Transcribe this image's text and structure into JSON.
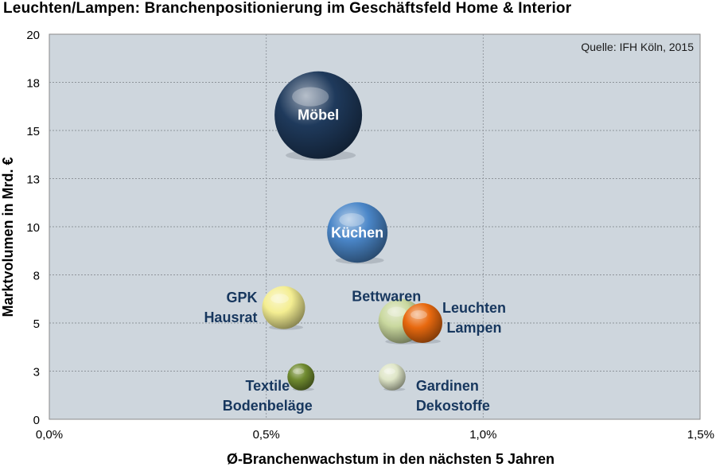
{
  "chart_data": {
    "type": "bubble",
    "title": "Leuchten/Lampen: Branchenpositionierung im Geschäftsfeld Home & Interior",
    "source_note": "Quelle: IFH Köln, 2015",
    "xlabel": "Ø-Branchenwachstum in den nächsten 5 Jahren",
    "ylabel": "Marktvolumen in Mrd. €",
    "xlim": [
      0.0,
      1.5
    ],
    "ylim": [
      0,
      20
    ],
    "x_ticks": [
      {
        "value": 0.0,
        "label": "0,0%"
      },
      {
        "value": 0.5,
        "label": "0,5%"
      },
      {
        "value": 1.0,
        "label": "1,0%"
      },
      {
        "value": 1.5,
        "label": "1,5%"
      }
    ],
    "y_ticks": [
      {
        "value": 0,
        "label": "0"
      },
      {
        "value": 2.5,
        "label": "3"
      },
      {
        "value": 5,
        "label": "5"
      },
      {
        "value": 7.5,
        "label": "8"
      },
      {
        "value": 10,
        "label": "10"
      },
      {
        "value": 12.5,
        "label": "13"
      },
      {
        "value": 15,
        "label": "15"
      },
      {
        "value": 17.5,
        "label": "18"
      },
      {
        "value": 20,
        "label": "20"
      }
    ],
    "grid": true,
    "plot_background": "#ced6dd",
    "series": [
      {
        "label": "Möbel",
        "x": 0.62,
        "y": 15.8,
        "size": 55,
        "color": "#1f3a5c",
        "label_color": "#ffffff",
        "label_pos": "inside"
      },
      {
        "label": "Küchen",
        "x": 0.71,
        "y": 9.7,
        "size": 38,
        "color": "#4a86c8",
        "label_color": "#ffffff",
        "label_pos": "inside"
      },
      {
        "label": "GPK\nHausrat",
        "x": 0.54,
        "y": 5.8,
        "size": 27,
        "color": "#f4ee92",
        "label_color": "#17375e",
        "label_pos": "left"
      },
      {
        "label": "Bettwaren",
        "x": 0.81,
        "y": 5.1,
        "size": 28,
        "color": "#c9d89e",
        "label_color": "#17375e",
        "label_pos": "above-left"
      },
      {
        "label": "Leuchten\nLampen",
        "x": 0.86,
        "y": 5.0,
        "size": 25,
        "color": "#e8690f",
        "label_color": "#17375e",
        "label_pos": "right"
      },
      {
        "label": "Textile\nBodenbeläge",
        "x": 0.58,
        "y": 2.2,
        "size": 17,
        "color": "#6f8a2f",
        "label_color": "#17375e",
        "label_pos": "below-left"
      },
      {
        "label": "Gardinen\nDekostoffe",
        "x": 0.79,
        "y": 2.2,
        "size": 17,
        "color": "#dfe6c8",
        "label_color": "#17375e",
        "label_pos": "below-right"
      }
    ]
  }
}
